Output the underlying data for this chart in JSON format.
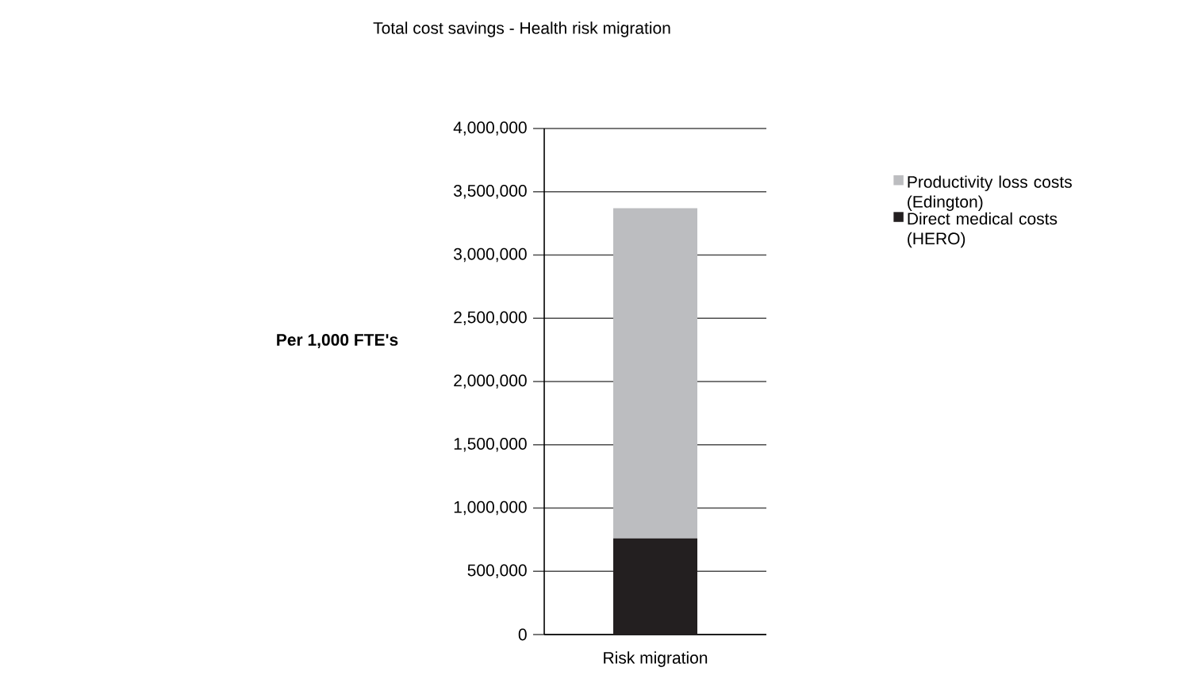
{
  "chart_data": {
    "type": "bar",
    "title": "Total cost savings - Health risk migration",
    "ylabel": "Per 1,000 FTE's",
    "categories": [
      "Risk migration"
    ],
    "stacked": true,
    "series": [
      {
        "name": "Direct medical costs (HERO)",
        "color": "#231f20",
        "values": [
          760000
        ]
      },
      {
        "name": "Productivity loss costs (Edington)",
        "color": "#bcbdc0",
        "values": [
          2610000
        ]
      }
    ],
    "ylim": [
      0,
      4000000
    ],
    "yticks": [
      {
        "value": 0,
        "label": "0"
      },
      {
        "value": 500000,
        "label": "500,000"
      },
      {
        "value": 1000000,
        "label": "1,000,000"
      },
      {
        "value": 1500000,
        "label": "1,500,000"
      },
      {
        "value": 2000000,
        "label": "2,000,000"
      },
      {
        "value": 2500000,
        "label": "2,500,000"
      },
      {
        "value": 3000000,
        "label": "3,000,000"
      },
      {
        "value": 3500000,
        "label": "3,500,000"
      },
      {
        "value": 4000000,
        "label": "4,000,000"
      }
    ],
    "grid": "y",
    "legend": "right"
  }
}
